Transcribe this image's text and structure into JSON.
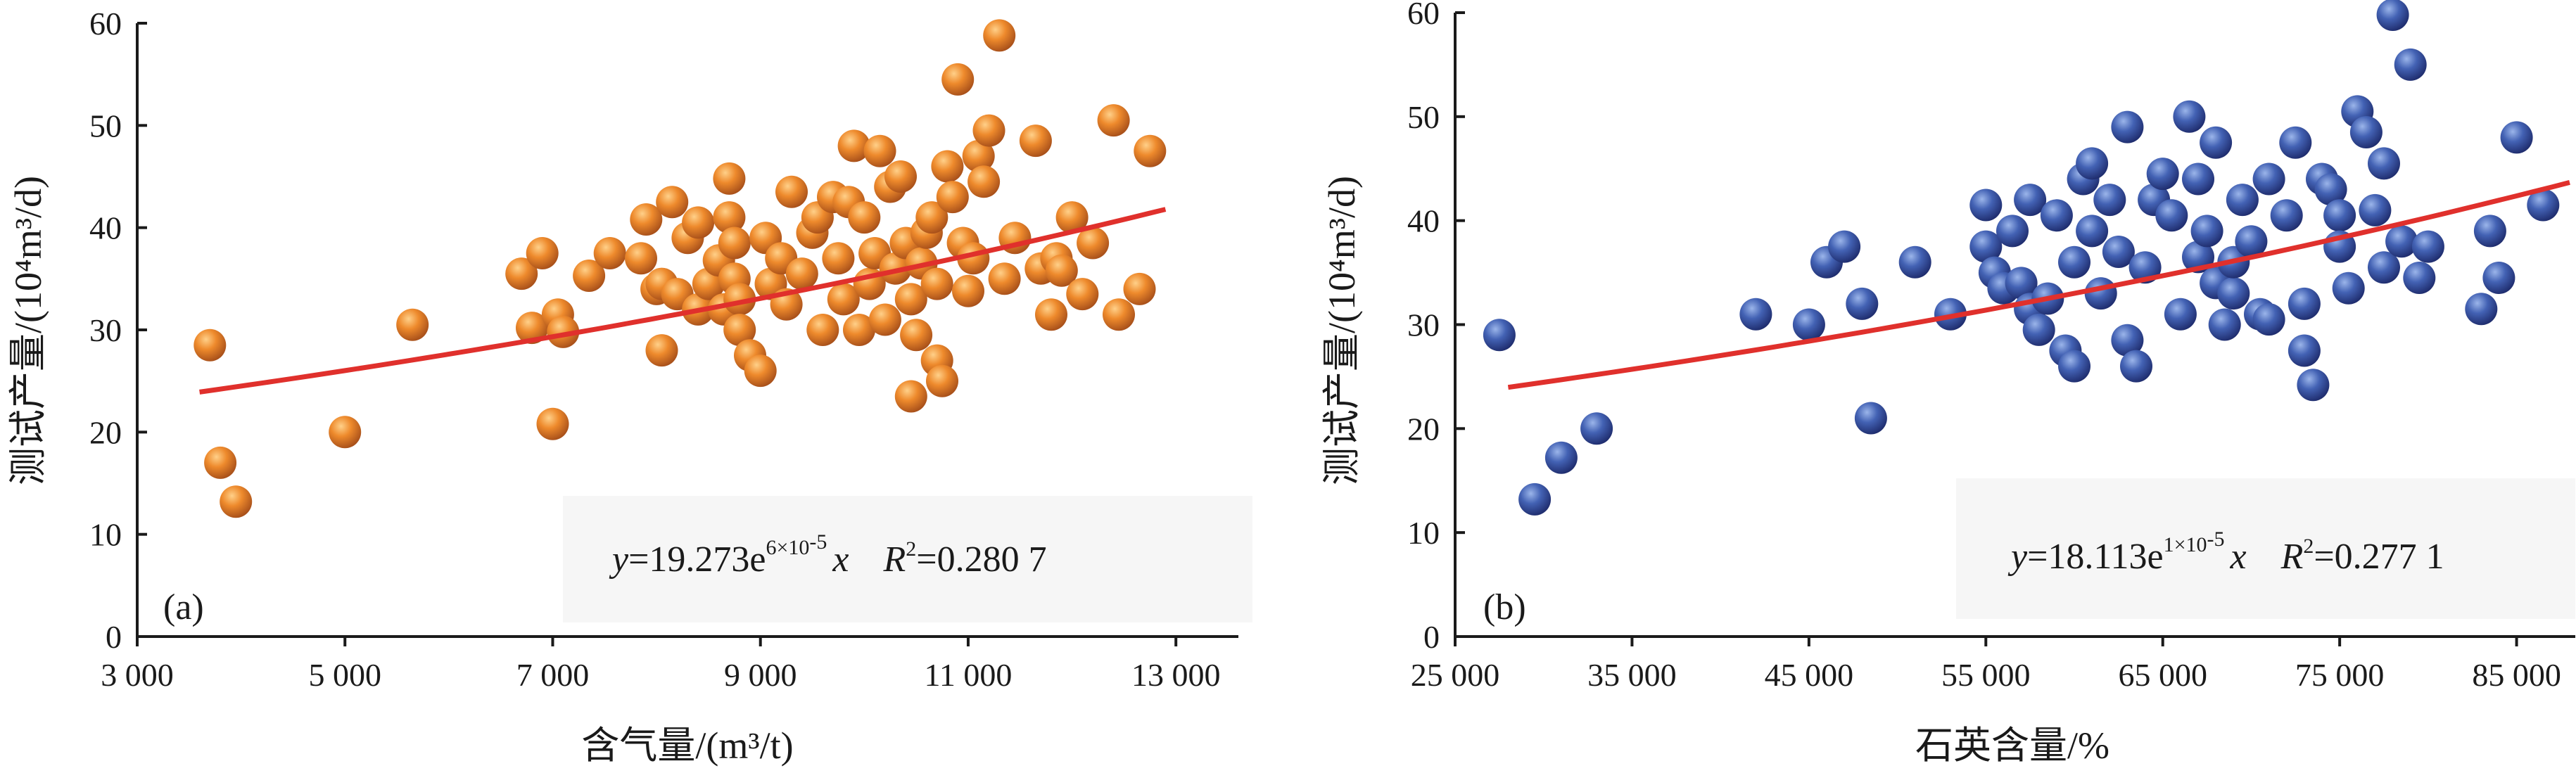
{
  "chart_data": [
    {
      "type": "scatter",
      "panel_label": "(a)",
      "xlabel": "含气量/(m³/t)",
      "ylabel": "测试产量/(10⁴m³/d)",
      "xlim": [
        3000,
        13500
      ],
      "ylim": [
        0,
        60
      ],
      "x_ticks": [
        3000,
        5000,
        7000,
        9000,
        11000,
        13000
      ],
      "x_tick_labels": [
        "3 000",
        "5 000",
        "7 000",
        "9 000",
        "11 000",
        "13 000"
      ],
      "y_ticks": [
        0,
        10,
        20,
        30,
        40,
        50,
        60
      ],
      "y_tick_labels": [
        "0",
        "10",
        "20",
        "30",
        "40",
        "50",
        "60"
      ],
      "marker_color": "#e07a22",
      "fit_color": "#e0302c",
      "fit": {
        "equation": "y=19.273e^(6×10⁻⁵x)",
        "eq_prefix": "y",
        "eq_main": "=19.273e",
        "eq_exp": "6×10",
        "eq_exp_sup": "-5",
        "eq_var": "x",
        "r2_prefix": "R",
        "r2_sup": "2",
        "r2_value": "=0.280 7",
        "a": 19.273,
        "b": 6e-05,
        "x_range": [
          3600,
          12900
        ]
      },
      "points": [
        [
          3700,
          28.5
        ],
        [
          3800,
          17
        ],
        [
          3950,
          13.2
        ],
        [
          5000,
          20
        ],
        [
          5650,
          30.5
        ],
        [
          6700,
          35.5
        ],
        [
          6800,
          30.2
        ],
        [
          6900,
          37.5
        ],
        [
          7000,
          20.8
        ],
        [
          7050,
          31.5
        ],
        [
          7100,
          29.8
        ],
        [
          7350,
          35.3
        ],
        [
          7550,
          37.5
        ],
        [
          7850,
          37
        ],
        [
          7900,
          40.8
        ],
        [
          8000,
          34
        ],
        [
          8050,
          34.5
        ],
        [
          8050,
          28
        ],
        [
          8150,
          42.5
        ],
        [
          8200,
          33.5
        ],
        [
          8300,
          39
        ],
        [
          8400,
          32
        ],
        [
          8400,
          40.5
        ],
        [
          8500,
          34.5
        ],
        [
          8600,
          36.8
        ],
        [
          8650,
          32
        ],
        [
          8700,
          44.8
        ],
        [
          8700,
          41
        ],
        [
          8750,
          38.5
        ],
        [
          8750,
          35
        ],
        [
          8800,
          33
        ],
        [
          8800,
          30
        ],
        [
          8900,
          27.5
        ],
        [
          9000,
          26
        ],
        [
          9050,
          39
        ],
        [
          9100,
          34.5
        ],
        [
          9200,
          37
        ],
        [
          9250,
          32.5
        ],
        [
          9300,
          43.5
        ],
        [
          9400,
          35.5
        ],
        [
          9500,
          39.5
        ],
        [
          9550,
          41
        ],
        [
          9600,
          30
        ],
        [
          9700,
          43
        ],
        [
          9750,
          37
        ],
        [
          9800,
          33
        ],
        [
          9850,
          42.5
        ],
        [
          9900,
          48
        ],
        [
          9950,
          30
        ],
        [
          10000,
          41
        ],
        [
          10050,
          34.5
        ],
        [
          10100,
          37.5
        ],
        [
          10150,
          47.5
        ],
        [
          10200,
          31
        ],
        [
          10250,
          44
        ],
        [
          10300,
          36
        ],
        [
          10350,
          45
        ],
        [
          10400,
          38.5
        ],
        [
          10450,
          23.5
        ],
        [
          10450,
          33
        ],
        [
          10500,
          29.5
        ],
        [
          10550,
          36.5
        ],
        [
          10600,
          39.5
        ],
        [
          10650,
          41
        ],
        [
          10700,
          27
        ],
        [
          10700,
          34.5
        ],
        [
          10750,
          25
        ],
        [
          10800,
          46
        ],
        [
          10850,
          43
        ],
        [
          10900,
          54.5
        ],
        [
          10950,
          38.5
        ],
        [
          11000,
          33.8
        ],
        [
          11050,
          37
        ],
        [
          11100,
          47
        ],
        [
          11150,
          44.5
        ],
        [
          11200,
          49.5
        ],
        [
          11300,
          58.8
        ],
        [
          11350,
          35
        ],
        [
          11450,
          39
        ],
        [
          11650,
          48.5
        ],
        [
          11700,
          36
        ],
        [
          11800,
          31.5
        ],
        [
          11850,
          37
        ],
        [
          11900,
          35.8
        ],
        [
          12000,
          41
        ],
        [
          12100,
          33.5
        ],
        [
          12200,
          38.5
        ],
        [
          12400,
          50.5
        ],
        [
          12450,
          31.5
        ],
        [
          12650,
          34
        ],
        [
          12750,
          47.5
        ]
      ]
    },
    {
      "type": "scatter",
      "panel_label": "(b)",
      "xlabel": "石英含量/%",
      "ylabel": "测试产量/(10⁴m³/d)",
      "xlim": [
        25000,
        88000
      ],
      "ylim": [
        0,
        60
      ],
      "x_ticks": [
        25000,
        35000,
        45000,
        55000,
        65000,
        75000,
        85000
      ],
      "x_tick_labels": [
        "25 000",
        "35 000",
        "45 000",
        "55 000",
        "65 000",
        "75 000",
        "85 000"
      ],
      "y_ticks": [
        0,
        10,
        20,
        30,
        40,
        50,
        60
      ],
      "y_tick_labels": [
        "0",
        "10",
        "20",
        "30",
        "40",
        "50",
        "60"
      ],
      "marker_color": "#3c57a6",
      "fit_color": "#e0302c",
      "fit": {
        "equation": "y=18.113e^(1×10⁻⁵x)",
        "eq_prefix": "y",
        "eq_main": "=18.113e",
        "eq_exp": "1×10",
        "eq_exp_sup": "-5",
        "eq_var": "x",
        "r2_prefix": "R",
        "r2_sup": "2",
        "r2_value": "=0.277 1",
        "a": 18.113,
        "b": 1e-05,
        "x_range": [
          28000,
          88000
        ]
      },
      "points": [
        [
          27500,
          29
        ],
        [
          29500,
          13.2
        ],
        [
          31000,
          17.2
        ],
        [
          33000,
          20
        ],
        [
          42000,
          31
        ],
        [
          45000,
          30
        ],
        [
          46000,
          36
        ],
        [
          47000,
          37.5
        ],
        [
          48000,
          32
        ],
        [
          48500,
          21
        ],
        [
          51000,
          36
        ],
        [
          53000,
          31
        ],
        [
          55000,
          41.5
        ],
        [
          55000,
          37.5
        ],
        [
          55500,
          35
        ],
        [
          56000,
          33.5
        ],
        [
          56500,
          39
        ],
        [
          57000,
          34
        ],
        [
          57500,
          42
        ],
        [
          57500,
          31.5
        ],
        [
          58000,
          29.5
        ],
        [
          58500,
          32.5
        ],
        [
          59000,
          40.5
        ],
        [
          59500,
          27.5
        ],
        [
          60000,
          26
        ],
        [
          60000,
          36
        ],
        [
          60500,
          44
        ],
        [
          61000,
          45.5
        ],
        [
          61000,
          39
        ],
        [
          61500,
          33
        ],
        [
          62000,
          42
        ],
        [
          62500,
          37
        ],
        [
          63000,
          49
        ],
        [
          63000,
          28.5
        ],
        [
          63500,
          26
        ],
        [
          64000,
          35.5
        ],
        [
          64500,
          42
        ],
        [
          65000,
          44.5
        ],
        [
          65500,
          40.5
        ],
        [
          66000,
          31
        ],
        [
          66500,
          50
        ],
        [
          67000,
          36.5
        ],
        [
          67000,
          44
        ],
        [
          67500,
          39
        ],
        [
          68000,
          47.5
        ],
        [
          68000,
          34
        ],
        [
          68500,
          30
        ],
        [
          69000,
          33
        ],
        [
          69000,
          36
        ],
        [
          69500,
          42
        ],
        [
          70000,
          38
        ],
        [
          70500,
          31
        ],
        [
          71000,
          44
        ],
        [
          71000,
          30.5
        ],
        [
          72000,
          40.5
        ],
        [
          72500,
          47.5
        ],
        [
          73000,
          32
        ],
        [
          73000,
          27.5
        ],
        [
          73500,
          24.2
        ],
        [
          74000,
          44
        ],
        [
          74500,
          43
        ],
        [
          75000,
          40.5
        ],
        [
          75000,
          37.5
        ],
        [
          75500,
          33.5
        ],
        [
          76000,
          50.5
        ],
        [
          76500,
          48.5
        ],
        [
          77000,
          41
        ],
        [
          77500,
          45.5
        ],
        [
          77500,
          35.5
        ],
        [
          78000,
          59.8
        ],
        [
          78500,
          38
        ],
        [
          79000,
          55
        ],
        [
          79500,
          34.5
        ],
        [
          80000,
          37.5
        ],
        [
          83000,
          31.5
        ],
        [
          83500,
          39
        ],
        [
          84000,
          34.5
        ],
        [
          85000,
          48
        ],
        [
          86500,
          41.5
        ]
      ]
    }
  ]
}
